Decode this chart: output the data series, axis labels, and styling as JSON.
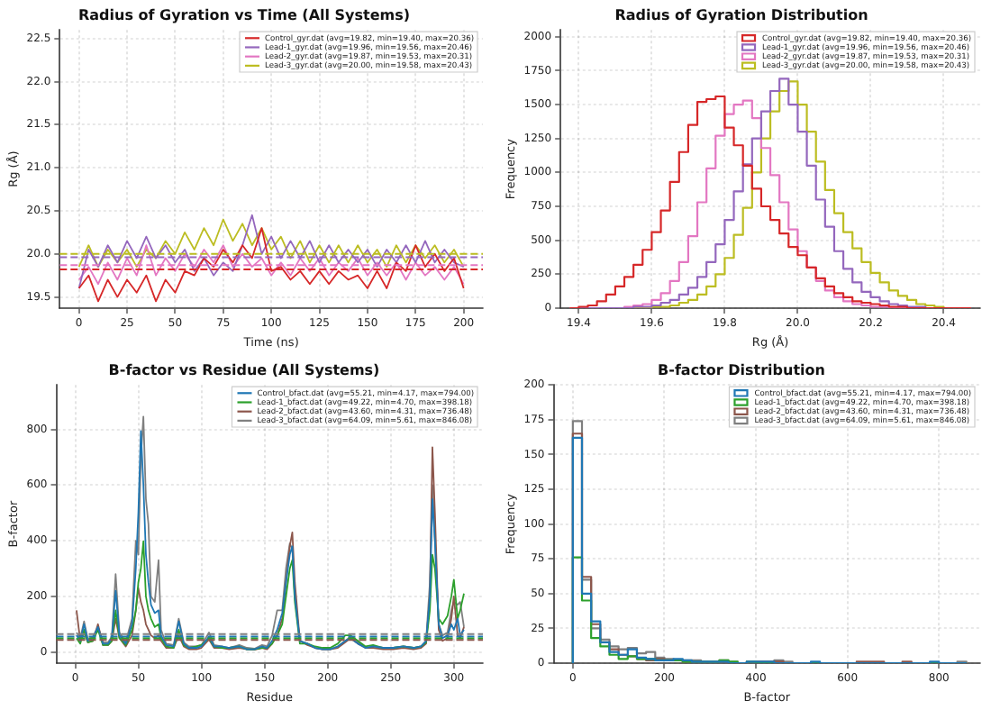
{
  "chart_data": [
    {
      "type": "line",
      "title": "Radius of Gyration vs Time (All Systems)",
      "xlabel": "Time (ns)",
      "ylabel": "Rg (Å)",
      "x": [
        0,
        5,
        10,
        15,
        20,
        25,
        30,
        35,
        40,
        45,
        50,
        55,
        60,
        65,
        70,
        75,
        80,
        85,
        90,
        95,
        100,
        105,
        110,
        115,
        120,
        125,
        130,
        135,
        140,
        145,
        150,
        155,
        160,
        165,
        170,
        175,
        180,
        185,
        190,
        195,
        200
      ],
      "series": [
        {
          "name": "Control_gyr.dat (avg=19.82, min=19.40, max=20.36)",
          "color": "#d62728",
          "values": [
            19.6,
            19.75,
            19.45,
            19.7,
            19.5,
            19.7,
            19.55,
            19.75,
            19.45,
            19.7,
            19.55,
            19.8,
            19.75,
            19.95,
            19.85,
            20.05,
            19.9,
            20.1,
            19.95,
            20.3,
            19.8,
            19.85,
            19.7,
            19.8,
            19.65,
            19.8,
            19.65,
            19.8,
            19.7,
            19.75,
            19.6,
            19.8,
            19.6,
            19.9,
            19.8,
            20.1,
            19.85,
            20.0,
            19.8,
            19.95,
            19.6
          ]
        },
        {
          "name": "Lead-1_gyr.dat (avg=19.96, min=19.56, max=20.46)",
          "color": "#9467bd",
          "values": [
            19.6,
            20.05,
            19.85,
            20.1,
            19.9,
            20.15,
            19.95,
            20.2,
            19.95,
            20.1,
            19.9,
            20.05,
            19.8,
            19.95,
            19.75,
            19.9,
            19.8,
            20.1,
            20.45,
            20.0,
            20.2,
            19.95,
            20.15,
            19.95,
            20.15,
            19.9,
            20.1,
            19.9,
            20.05,
            19.9,
            20.05,
            19.85,
            20.05,
            19.9,
            20.1,
            19.9,
            20.15,
            19.9,
            20.05,
            19.9,
            19.85
          ]
        },
        {
          "name": "Lead-2_gyr.dat (avg=19.87, min=19.53, max=20.31)",
          "color": "#e377c2",
          "values": [
            19.7,
            19.85,
            19.65,
            19.9,
            19.7,
            19.95,
            19.75,
            20.1,
            19.75,
            19.95,
            19.8,
            20.0,
            19.85,
            20.05,
            19.9,
            20.1,
            19.85,
            20.0,
            19.85,
            19.95,
            19.75,
            19.9,
            19.75,
            19.95,
            19.8,
            19.95,
            19.75,
            19.9,
            19.8,
            19.95,
            19.75,
            19.9,
            19.75,
            19.9,
            19.7,
            19.9,
            19.75,
            19.85,
            19.7,
            19.85,
            19.65
          ]
        },
        {
          "name": "Lead-3_gyr.dat (avg=20.00, min=19.58, max=20.43)",
          "color": "#bcbd22",
          "values": [
            19.85,
            20.1,
            19.85,
            20.05,
            19.9,
            20.05,
            19.85,
            20.05,
            19.95,
            20.15,
            20.0,
            20.25,
            20.05,
            20.3,
            20.1,
            20.4,
            20.15,
            20.35,
            20.1,
            20.3,
            20.05,
            20.2,
            19.95,
            20.15,
            19.9,
            20.1,
            19.9,
            20.1,
            19.9,
            20.1,
            19.9,
            20.05,
            19.85,
            20.1,
            19.9,
            20.1,
            19.95,
            20.1,
            19.9,
            20.05,
            19.85
          ]
        }
      ],
      "ref_lines": [
        {
          "axis": "y",
          "value": 19.82,
          "color": "#d62728",
          "line_style": "dashed"
        },
        {
          "axis": "y",
          "value": 19.96,
          "color": "#9467bd",
          "line_style": "dashed"
        },
        {
          "axis": "y",
          "value": 19.87,
          "color": "#e377c2",
          "line_style": "dashed"
        },
        {
          "axis": "y",
          "value": 20.0,
          "color": "#bcbd22",
          "line_style": "dashed"
        }
      ],
      "xlim": [
        -10,
        210
      ],
      "xticks": [
        0,
        25,
        50,
        75,
        100,
        125,
        150,
        175,
        200
      ],
      "ylim": [
        19.37,
        22.6
      ],
      "yticks": [
        19.5,
        {
          "value": 20,
          "label": "20.0"
        },
        20.5,
        {
          "value": 21,
          "label": "21.0"
        },
        21.5,
        {
          "value": 22,
          "label": "22.0"
        },
        22.5
      ],
      "grid": true,
      "legend": "top right"
    },
    {
      "type": "histogram",
      "title": "Radius of Gyration Distribution",
      "xlabel": "Rg (Å)",
      "ylabel": "Frequency",
      "bins": [
        19.375,
        19.4,
        19.425,
        19.45,
        19.475,
        19.5,
        19.525,
        19.55,
        19.575,
        19.6,
        19.625,
        19.65,
        19.675,
        19.7,
        19.725,
        19.75,
        19.775,
        19.8,
        19.825,
        19.85,
        19.875,
        19.9,
        19.925,
        19.95,
        19.975,
        20,
        20.025,
        20.05,
        20.075,
        20.1,
        20.125,
        20.15,
        20.175,
        20.2,
        20.225,
        20.25,
        20.275,
        20.3,
        20.325,
        20.35,
        20.375,
        20.4,
        20.425,
        20.45,
        20.475
      ],
      "series": [
        {
          "name": "Control_gyr.dat (avg=19.82, min=19.40, max=20.36)",
          "color": "#d62728",
          "values": [
            0,
            10,
            20,
            50,
            100,
            160,
            230,
            320,
            430,
            560,
            720,
            930,
            1150,
            1350,
            1520,
            1540,
            1560,
            1330,
            1200,
            1050,
            880,
            750,
            650,
            550,
            450,
            390,
            300,
            220,
            160,
            110,
            80,
            50,
            40,
            30,
            20,
            10,
            10,
            0,
            0,
            0,
            0,
            0,
            0,
            0
          ]
        },
        {
          "name": "Lead-1_gyr.dat (avg=19.96, min=19.56, max=20.46)",
          "color": "#9467bd",
          "values": [
            0,
            0,
            0,
            0,
            0,
            0,
            0,
            10,
            10,
            20,
            40,
            60,
            100,
            150,
            230,
            340,
            470,
            650,
            860,
            1060,
            1250,
            1450,
            1600,
            1690,
            1500,
            1300,
            1050,
            800,
            600,
            420,
            290,
            190,
            120,
            80,
            50,
            30,
            20,
            10,
            10,
            0,
            0,
            0,
            0,
            0
          ]
        },
        {
          "name": "Lead-2_gyr.dat (avg=19.87, min=19.53, max=20.31)",
          "color": "#e377c2",
          "values": [
            0,
            0,
            0,
            0,
            0,
            0,
            10,
            20,
            30,
            60,
            110,
            200,
            340,
            530,
            780,
            1030,
            1270,
            1430,
            1500,
            1530,
            1400,
            1180,
            980,
            780,
            580,
            420,
            300,
            200,
            130,
            80,
            50,
            30,
            20,
            10,
            10,
            0,
            0,
            0,
            0,
            0,
            0,
            0,
            0,
            0
          ]
        },
        {
          "name": "Lead-3_gyr.dat (avg=20.00, min=19.58, max=20.43)",
          "color": "#bcbd22",
          "values": [
            0,
            0,
            0,
            0,
            0,
            0,
            0,
            0,
            0,
            10,
            10,
            20,
            40,
            60,
            100,
            160,
            250,
            370,
            540,
            740,
            1000,
            1250,
            1450,
            1600,
            1670,
            1500,
            1300,
            1080,
            870,
            700,
            560,
            440,
            340,
            260,
            190,
            130,
            90,
            60,
            30,
            20,
            10,
            0,
            0,
            0
          ]
        }
      ],
      "xlim": [
        19.35,
        20.5
      ],
      "xticks": [
        19.4,
        19.6,
        19.8,
        {
          "value": 20,
          "label": "20.0"
        },
        20.2,
        20.4
      ],
      "ylim": [
        0,
        2050
      ],
      "yticks": [
        0,
        250,
        500,
        750,
        1000,
        1250,
        1500,
        1750,
        2000
      ],
      "grid": true,
      "legend": "top right"
    },
    {
      "type": "line",
      "title": "B-factor vs Residue (All Systems)",
      "xlabel": "Residue",
      "ylabel": "B-factor",
      "x": [
        1,
        4,
        7,
        10,
        14,
        18,
        22,
        26,
        29,
        32,
        35,
        40,
        45,
        48,
        50,
        52,
        54,
        56,
        58,
        60,
        63,
        66,
        68,
        72,
        78,
        82,
        86,
        90,
        96,
        100,
        106,
        110,
        116,
        122,
        130,
        136,
        142,
        148,
        152,
        156,
        160,
        164,
        167,
        170,
        172,
        174,
        178,
        184,
        190,
        196,
        202,
        208,
        214,
        218,
        224,
        230,
        236,
        244,
        252,
        260,
        268,
        274,
        278,
        281,
        283,
        285,
        288,
        291,
        295,
        298,
        300,
        303,
        305,
        308
      ],
      "series": [
        {
          "name": "Control_bfact.dat (avg=55.21, min=4.17, max=794.00)",
          "color": "#1f77b4",
          "values": [
            60,
            40,
            100,
            40,
            50,
            90,
            30,
            30,
            50,
            220,
            60,
            30,
            100,
            300,
            500,
            794,
            600,
            350,
            250,
            170,
            140,
            150,
            60,
            25,
            20,
            110,
            30,
            15,
            15,
            20,
            55,
            20,
            20,
            15,
            20,
            10,
            10,
            20,
            15,
            40,
            80,
            140,
            250,
            350,
            380,
            200,
            40,
            30,
            15,
            10,
            10,
            20,
            40,
            50,
            30,
            15,
            20,
            15,
            15,
            20,
            15,
            20,
            40,
            200,
            550,
            400,
            100,
            50,
            60,
            100,
            80,
            120,
            60,
            80
          ]
        },
        {
          "name": "Lead-1_bfact.dat (avg=49.22, min=4.70, max=398.18)",
          "color": "#2ca02c",
          "values": [
            50,
            30,
            80,
            35,
            40,
            80,
            25,
            25,
            40,
            150,
            50,
            25,
            80,
            150,
            250,
            300,
            398,
            200,
            150,
            120,
            90,
            100,
            50,
            20,
            15,
            80,
            25,
            15,
            20,
            25,
            50,
            20,
            15,
            15,
            20,
            10,
            10,
            15,
            15,
            30,
            60,
            100,
            200,
            300,
            330,
            180,
            30,
            30,
            20,
            15,
            15,
            30,
            60,
            60,
            40,
            20,
            25,
            15,
            15,
            20,
            15,
            20,
            35,
            150,
            350,
            300,
            120,
            100,
            130,
            200,
            260,
            120,
            150,
            210
          ]
        },
        {
          "name": "Lead-2_bfact.dat (avg=43.60, min=4.31, max=736.48)",
          "color": "#8c564b",
          "values": [
            150,
            40,
            70,
            35,
            40,
            100,
            25,
            25,
            40,
            120,
            50,
            20,
            60,
            150,
            230,
            180,
            150,
            100,
            80,
            60,
            50,
            60,
            40,
            15,
            15,
            60,
            20,
            10,
            10,
            15,
            45,
            15,
            15,
            10,
            15,
            10,
            8,
            15,
            10,
            30,
            60,
            120,
            250,
            380,
            430,
            250,
            40,
            25,
            15,
            10,
            10,
            15,
            35,
            50,
            30,
            15,
            15,
            10,
            10,
            15,
            10,
            15,
            30,
            200,
            736,
            500,
            80,
            40,
            50,
            120,
            200,
            60,
            50,
            90
          ]
        },
        {
          "name": "Lead-3_bfact.dat (avg=64.09, min=5.61, max=846.08)",
          "color": "#7f7f7f",
          "values": [
            70,
            50,
            110,
            45,
            55,
            90,
            35,
            35,
            55,
            280,
            70,
            35,
            120,
            400,
            350,
            700,
            846,
            550,
            460,
            200,
            180,
            330,
            80,
            30,
            25,
            120,
            35,
            20,
            20,
            25,
            70,
            25,
            20,
            15,
            25,
            15,
            12,
            25,
            20,
            60,
            150,
            150,
            300,
            390,
            370,
            200,
            40,
            30,
            15,
            10,
            10,
            20,
            40,
            55,
            35,
            15,
            20,
            15,
            15,
            20,
            15,
            20,
            40,
            250,
            600,
            400,
            100,
            60,
            70,
            150,
            180,
            170,
            180,
            90
          ]
        }
      ],
      "ref_lines": [
        {
          "axis": "y",
          "value": 55.21,
          "color": "#1f77b4",
          "line_style": "dashed"
        },
        {
          "axis": "y",
          "value": 49.22,
          "color": "#2ca02c",
          "line_style": "dashed"
        },
        {
          "axis": "y",
          "value": 43.6,
          "color": "#8c564b",
          "line_style": "dashed"
        },
        {
          "axis": "y",
          "value": 64.09,
          "color": "#7f7f7f",
          "line_style": "dashed"
        }
      ],
      "xlim": [
        -15,
        323
      ],
      "xticks": [
        0,
        50,
        100,
        150,
        200,
        250,
        300
      ],
      "ylim": [
        -40,
        960
      ],
      "yticks": [
        0,
        200,
        400,
        600,
        800
      ],
      "grid": true,
      "legend": "top right"
    },
    {
      "type": "histogram",
      "title": "B-factor Distribution",
      "xlabel": "B-factor",
      "ylabel": "Frequency",
      "bins": [
        0,
        20,
        40,
        60,
        80,
        100,
        120,
        140,
        160,
        180,
        200,
        220,
        240,
        260,
        280,
        300,
        320,
        340,
        360,
        380,
        400,
        420,
        440,
        460,
        480,
        500,
        520,
        540,
        560,
        580,
        600,
        620,
        640,
        660,
        680,
        700,
        720,
        740,
        760,
        780,
        800,
        820,
        840,
        860
      ],
      "series": [
        {
          "name": "Control_bfact.dat (avg=55.21, min=4.17, max=794.00)",
          "color": "#1f77b4",
          "values": [
            162,
            50,
            30,
            15,
            8,
            6,
            10,
            4,
            3,
            2,
            2,
            3,
            2,
            1,
            1,
            1,
            1,
            0,
            0,
            1,
            1,
            1,
            0,
            0,
            0,
            0,
            1,
            0,
            0,
            0,
            0,
            0,
            0,
            0,
            0,
            0,
            0,
            0,
            0,
            1,
            0,
            0,
            0
          ]
        },
        {
          "name": "Lead-1_bfact.dat (avg=49.22, min=4.70, max=398.18)",
          "color": "#2ca02c",
          "values": [
            76,
            45,
            18,
            12,
            6,
            3,
            5,
            3,
            3,
            2,
            2,
            2,
            1,
            1,
            1,
            1,
            2,
            1,
            0,
            1,
            0,
            0,
            0,
            0,
            0,
            0,
            0,
            0,
            0,
            0,
            0,
            0,
            0,
            0,
            0,
            0,
            0,
            0,
            0,
            0,
            0,
            0,
            0
          ]
        },
        {
          "name": "Lead-2_bfact.dat (avg=43.60, min=4.31, max=736.48)",
          "color": "#8c564b",
          "values": [
            165,
            62,
            28,
            15,
            10,
            6,
            5,
            3,
            2,
            3,
            2,
            2,
            1,
            1,
            1,
            1,
            1,
            0,
            0,
            1,
            1,
            1,
            1,
            0,
            0,
            0,
            0,
            0,
            0,
            0,
            0,
            1,
            1,
            1,
            0,
            0,
            1,
            0,
            0,
            0,
            0,
            0,
            0
          ]
        },
        {
          "name": "Lead-3_bfact.dat (avg=64.09, min=5.61, max=846.08)",
          "color": "#7f7f7f",
          "values": [
            174,
            60,
            25,
            17,
            12,
            10,
            11,
            7,
            8,
            4,
            3,
            2,
            2,
            2,
            1,
            1,
            2,
            1,
            0,
            1,
            1,
            1,
            2,
            1,
            0,
            0,
            0,
            0,
            0,
            0,
            0,
            0,
            0,
            0,
            0,
            0,
            0,
            0,
            0,
            0,
            0,
            0,
            1
          ]
        }
      ],
      "xlim": [
        -42,
        890
      ],
      "xticks": [
        0,
        200,
        400,
        600,
        800
      ],
      "ylim": [
        0,
        200
      ],
      "yticks": [
        0,
        25,
        50,
        75,
        100,
        125,
        150,
        175,
        200
      ],
      "grid": true,
      "legend": "top right"
    }
  ]
}
